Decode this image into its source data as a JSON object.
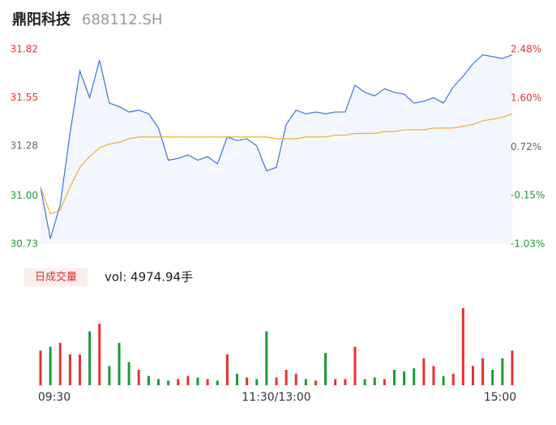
{
  "header": {
    "title": "鼎阳科技",
    "code": "688112.SH"
  },
  "chart_data": [
    {
      "type": "line",
      "xlim": [
        0,
        48
      ],
      "ylim": [
        30.73,
        31.82
      ],
      "yticks": [
        30.73,
        {
          "value": 31,
          "label": "31.00"
        },
        31.28,
        31.55,
        31.82
      ],
      "y2lim": [
        -1.03,
        2.48
      ],
      "y2ticks": [
        {
          "value": -1.03,
          "label": "-1.03%"
        },
        {
          "value": -0.15,
          "label": "-0.15%"
        },
        {
          "value": 0.72,
          "label": "0.72%"
        },
        {
          "value": 1.6,
          "label": "1.60%"
        },
        {
          "value": 2.48,
          "label": "2.48%"
        }
      ],
      "up_color": "#e8312f",
      "down_color": "#1a9a3a",
      "flat_color": "#666666",
      "fill_color": "#f3f6fd",
      "series": [
        {
          "color": "#3a74e0",
          "values": [
            31.05,
            30.76,
            30.95,
            31.35,
            31.7,
            31.55,
            31.76,
            31.52,
            31.5,
            31.47,
            31.48,
            31.46,
            31.38,
            31.2,
            31.21,
            31.23,
            31.2,
            31.22,
            31.18,
            31.33,
            31.31,
            31.32,
            31.28,
            31.14,
            31.16,
            31.4,
            31.48,
            31.46,
            31.47,
            31.46,
            31.47,
            31.47,
            31.62,
            31.58,
            31.56,
            31.6,
            31.58,
            31.57,
            31.52,
            31.53,
            31.55,
            31.52,
            31.61,
            31.67,
            31.74,
            31.79,
            31.78,
            31.77,
            31.79
          ]
        },
        {
          "color": "#f0b030",
          "values": [
            31.05,
            30.9,
            30.92,
            31.05,
            31.16,
            31.22,
            31.27,
            31.29,
            31.3,
            31.32,
            31.33,
            31.33,
            31.33,
            31.33,
            31.33,
            31.33,
            31.33,
            31.33,
            31.33,
            31.33,
            31.33,
            31.33,
            31.33,
            31.33,
            31.32,
            31.32,
            31.32,
            31.33,
            31.33,
            31.33,
            31.34,
            31.34,
            31.35,
            31.35,
            31.35,
            31.36,
            31.36,
            31.37,
            31.37,
            31.37,
            31.38,
            31.38,
            31.38,
            31.39,
            31.4,
            31.42,
            31.43,
            31.44,
            31.46
          ]
        }
      ]
    },
    {
      "type": "bar",
      "volume_tag": "日成交量",
      "volume_text": "vol: 4974.94手",
      "xlim": [
        0,
        48
      ],
      "ylim": [
        0,
        100
      ],
      "xticks": [
        {
          "value": 0,
          "label": "09:30"
        },
        {
          "value": 24,
          "label": "11:30/13:00"
        },
        {
          "value": 48,
          "label": "15:00"
        }
      ],
      "values": [
        45,
        50,
        55,
        40,
        40,
        70,
        80,
        25,
        55,
        30,
        20,
        12,
        8,
        6,
        8,
        12,
        10,
        8,
        6,
        40,
        15,
        10,
        8,
        70,
        10,
        20,
        15,
        8,
        6,
        42,
        8,
        8,
        50,
        8,
        10,
        8,
        20,
        18,
        22,
        35,
        25,
        12,
        15,
        100,
        25,
        35,
        20,
        35,
        45
      ]
    }
  ]
}
